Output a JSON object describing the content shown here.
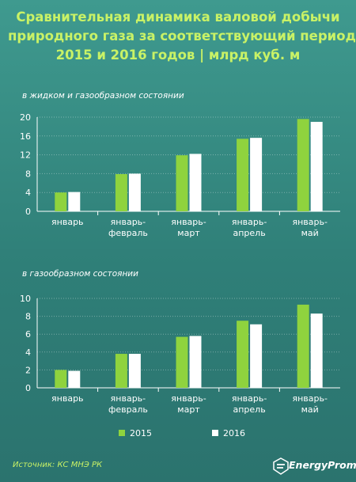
{
  "title_lines": [
    "Сравнительная динамика валовой добычи",
    "природного газа за соответствующий период",
    "2015 и 2016 годов | млрд куб. м"
  ],
  "colors": {
    "s2015": "#8fd33e",
    "s2016": "#ffffff",
    "axis": "#ffffff"
  },
  "legend": {
    "label_2015": "2015",
    "label_2016": "2016"
  },
  "source": "Источник: КС МНЭ РК",
  "logo_text": "EnergyProm",
  "chart_data": [
    {
      "type": "bar",
      "subtitle": "в жидком  и газообразном состоянии",
      "categories": [
        [
          "январь"
        ],
        [
          "январь-",
          "февраль"
        ],
        [
          "январь-",
          "март"
        ],
        [
          "январь-",
          "апрель"
        ],
        [
          "январь-",
          "май"
        ]
      ],
      "series": [
        {
          "name": "2015",
          "values": [
            4.0,
            7.9,
            11.9,
            15.4,
            19.6
          ]
        },
        {
          "name": "2016",
          "values": [
            4.1,
            8.0,
            12.2,
            15.6,
            19.0
          ]
        }
      ],
      "ylim": [
        0,
        20
      ],
      "yticks": [
        0,
        4,
        8,
        12,
        16,
        20
      ],
      "grid": true
    },
    {
      "type": "bar",
      "subtitle": "в газообразном состоянии",
      "categories": [
        [
          "январь"
        ],
        [
          "январь-",
          "февраль"
        ],
        [
          "январь-",
          "март"
        ],
        [
          "январь-",
          "апрель"
        ],
        [
          "январь-",
          "май"
        ]
      ],
      "series": [
        {
          "name": "2015",
          "values": [
            2.0,
            3.8,
            5.7,
            7.5,
            9.3
          ]
        },
        {
          "name": "2016",
          "values": [
            1.9,
            3.8,
            5.8,
            7.1,
            8.3
          ]
        }
      ],
      "ylim": [
        0,
        10
      ],
      "yticks": [
        0,
        2,
        4,
        6,
        8,
        10
      ],
      "grid": true
    }
  ]
}
